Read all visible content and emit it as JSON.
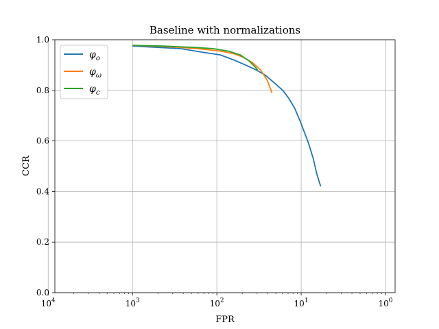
{
  "chart_data": {
    "type": "line",
    "title": "Baseline with normalizations",
    "xlabel": "FPR",
    "ylabel": "CCR",
    "xscale": "log",
    "x_reversed": true,
    "xlim": [
      0.00012,
      1.3
    ],
    "ylim": [
      0.0,
      1.0
    ],
    "grid": true,
    "legend_position": "top-left",
    "xticks": [
      {
        "value": 0.0001,
        "label_base": "10",
        "label_exp": "4"
      },
      {
        "value": 0.001,
        "label_base": "10",
        "label_exp": "3"
      },
      {
        "value": 0.01,
        "label_base": "10",
        "label_exp": "2"
      },
      {
        "value": 0.1,
        "label_base": "10",
        "label_exp": "1"
      },
      {
        "value": 1.0,
        "label_base": "10",
        "label_exp": "0"
      }
    ],
    "yticks": [
      {
        "value": 0.0,
        "label": "0.0"
      },
      {
        "value": 0.2,
        "label": "0.2"
      },
      {
        "value": 0.4,
        "label": "0.4"
      },
      {
        "value": 0.6,
        "label": "0.6"
      },
      {
        "value": 0.8,
        "label": "0.8"
      },
      {
        "value": 1.0,
        "label": "1.0"
      }
    ],
    "series": [
      {
        "name": "φ_o",
        "legend_symbol": "φ",
        "legend_sub": "o",
        "color": "#1f77b4",
        "x": [
          0.1703,
          0.1532,
          0.1392,
          0.1226,
          0.1103,
          0.0968,
          0.0836,
          0.0708,
          0.0605,
          0.0478,
          0.0376,
          0.0295,
          0.022,
          0.0159,
          0.011,
          0.0069,
          0.0037,
          0.001
        ],
        "y": [
          0.42,
          0.47,
          0.53,
          0.59,
          0.63,
          0.68,
          0.73,
          0.77,
          0.8,
          0.83,
          0.86,
          0.88,
          0.9,
          0.92,
          0.94,
          0.95,
          0.965,
          0.975
        ]
      },
      {
        "name": "φ_ω",
        "legend_symbol": "φ",
        "legend_sub": "ω",
        "color": "#ff7f0e",
        "x": [
          0.0451,
          0.0395,
          0.0332,
          0.0263,
          0.0207,
          0.0159,
          0.011,
          0.0069,
          0.0037,
          0.001
        ],
        "y": [
          0.79,
          0.84,
          0.88,
          0.91,
          0.93,
          0.945,
          0.955,
          0.963,
          0.97,
          0.978
        ]
      },
      {
        "name": "φ_c",
        "legend_symbol": "φ",
        "legend_sub": "c",
        "color": "#2ca02c",
        "x": [
          0.0304,
          0.0289,
          0.0244,
          0.019,
          0.0138,
          0.009,
          0.0053,
          0.0023,
          0.001
        ],
        "y": [
          0.88,
          0.89,
          0.915,
          0.94,
          0.955,
          0.965,
          0.97,
          0.975,
          0.978
        ]
      }
    ]
  }
}
